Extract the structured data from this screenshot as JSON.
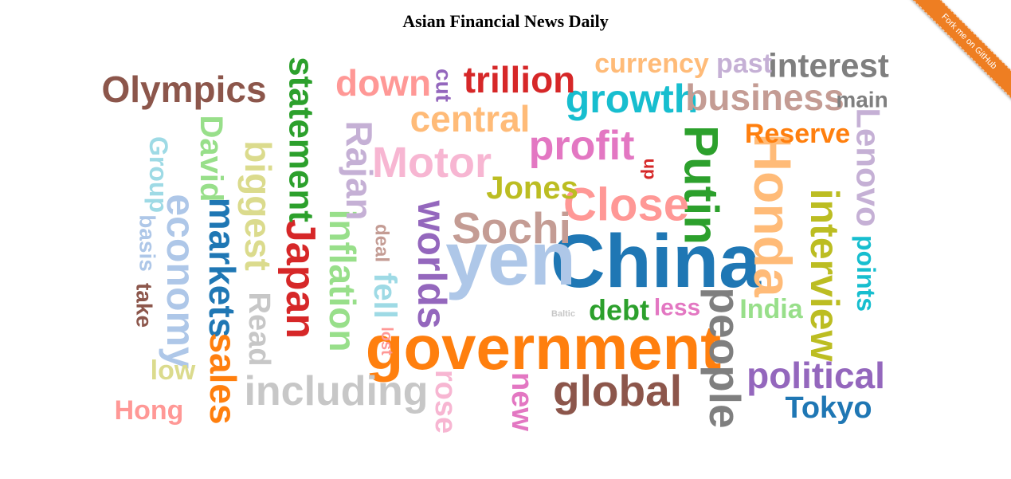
{
  "page": {
    "title": "Asian Financial News Daily"
  },
  "ribbon": {
    "label": "Fork me on GitHub"
  },
  "palette": {
    "orange": "#ff7f0e",
    "blue": "#1f77b4",
    "red": "#d62728",
    "green": "#2ca02c",
    "purple": "#9467bd",
    "brown": "#8c564b",
    "pink": "#e377c2",
    "gray": "#7f7f7f",
    "olive": "#bcbd22",
    "cyan": "#17becf",
    "light_blue": "#aec7e8",
    "light_orange": "#ffbb78",
    "light_green": "#98df8a",
    "light_red": "#ff9896",
    "light_purple": "#c5b0d5",
    "light_brown": "#c49c94",
    "light_pink": "#f7b6d2",
    "light_gray": "#c7c7c7",
    "light_olive": "#dbdb8d",
    "light_cyan": "#9edae5"
  },
  "words": [
    {
      "text": "China",
      "color": "#1f77b4",
      "size": 95,
      "rotate": 0
    },
    {
      "text": "yen",
      "color": "#aec7e8",
      "size": 95,
      "rotate": 0
    },
    {
      "text": "government",
      "color": "#ff7f0e",
      "size": 78,
      "rotate": 0
    },
    {
      "text": "Honda",
      "color": "#ffbb78",
      "size": 66,
      "rotate": 90
    },
    {
      "text": "Putin",
      "color": "#2ca02c",
      "size": 60,
      "rotate": 90
    },
    {
      "text": "Close",
      "color": "#ff9896",
      "size": 58,
      "rotate": 0
    },
    {
      "text": "global",
      "color": "#8c564b",
      "size": 55,
      "rotate": 0
    },
    {
      "text": "people",
      "color": "#7f7f7f",
      "size": 55,
      "rotate": 90
    },
    {
      "text": "Japan",
      "color": "#d62728",
      "size": 52,
      "rotate": 90
    },
    {
      "text": "including",
      "color": "#c7c7c7",
      "size": 52,
      "rotate": 0
    },
    {
      "text": "Sochi",
      "color": "#c49c94",
      "size": 55,
      "rotate": 0
    },
    {
      "text": "Motor",
      "color": "#f7b6d2",
      "size": 54,
      "rotate": 0
    },
    {
      "text": "profit",
      "color": "#e377c2",
      "size": 52,
      "rotate": 0
    },
    {
      "text": "growth",
      "color": "#17becf",
      "size": 50,
      "rotate": 0
    },
    {
      "text": "business",
      "color": "#c49c94",
      "size": 46,
      "rotate": 0
    },
    {
      "text": "interview",
      "color": "#bcbd22",
      "size": 50,
      "rotate": 90
    },
    {
      "text": "worlds",
      "color": "#9467bd",
      "size": 50,
      "rotate": 90
    },
    {
      "text": "economy",
      "color": "#aec7e8",
      "size": 50,
      "rotate": 90
    },
    {
      "text": "markets",
      "color": "#1f77b4",
      "size": 46,
      "rotate": 90
    },
    {
      "text": "Olympics",
      "color": "#8c564b",
      "size": 46,
      "rotate": 0
    },
    {
      "text": "statement",
      "color": "#2ca02c",
      "size": 44,
      "rotate": 90
    },
    {
      "text": "inflation",
      "color": "#98df8a",
      "size": 46,
      "rotate": 90
    },
    {
      "text": "biggest",
      "color": "#dbdb8d",
      "size": 46,
      "rotate": 90
    },
    {
      "text": "political",
      "color": "#9467bd",
      "size": 46,
      "rotate": 0
    },
    {
      "text": "trillion",
      "color": "#d62728",
      "size": 46,
      "rotate": 0
    },
    {
      "text": "central",
      "color": "#ffbb78",
      "size": 46,
      "rotate": 0
    },
    {
      "text": "down",
      "color": "#ff9896",
      "size": 46,
      "rotate": 0
    },
    {
      "text": "Rajan",
      "color": "#c5b0d5",
      "size": 46,
      "rotate": 90
    },
    {
      "text": "sales",
      "color": "#ff7f0e",
      "size": 46,
      "rotate": 90
    },
    {
      "text": "interest",
      "color": "#7f7f7f",
      "size": 42,
      "rotate": 0
    },
    {
      "text": "Lenovo",
      "color": "#c5b0d5",
      "size": 42,
      "rotate": 90
    },
    {
      "text": "David",
      "color": "#98df8a",
      "size": 40,
      "rotate": 90
    },
    {
      "text": "Jones",
      "color": "#bcbd22",
      "size": 40,
      "rotate": 0
    },
    {
      "text": "Tokyo",
      "color": "#1f77b4",
      "size": 38,
      "rotate": 0
    },
    {
      "text": "Reserve",
      "color": "#ff7f0e",
      "size": 34,
      "rotate": 0
    },
    {
      "text": "currency",
      "color": "#ffbb78",
      "size": 34,
      "rotate": 0
    },
    {
      "text": "past",
      "color": "#c5b0d5",
      "size": 34,
      "rotate": 0
    },
    {
      "text": "fell",
      "color": "#9edae5",
      "size": 40,
      "rotate": 90
    },
    {
      "text": "rose",
      "color": "#f7b6d2",
      "size": 38,
      "rotate": 90
    },
    {
      "text": "Read",
      "color": "#c7c7c7",
      "size": 38,
      "rotate": 90
    },
    {
      "text": "new",
      "color": "#e377c2",
      "size": 38,
      "rotate": 90
    },
    {
      "text": "debt",
      "color": "#2ca02c",
      "size": 36,
      "rotate": 0
    },
    {
      "text": "India",
      "color": "#98df8a",
      "size": 34,
      "rotate": 0
    },
    {
      "text": "points",
      "color": "#17becf",
      "size": 32,
      "rotate": 90
    },
    {
      "text": "Group",
      "color": "#9edae5",
      "size": 32,
      "rotate": 90
    },
    {
      "text": "Hong",
      "color": "#ff9896",
      "size": 34,
      "rotate": 0
    },
    {
      "text": "low",
      "color": "#dbdb8d",
      "size": 34,
      "rotate": 0
    },
    {
      "text": "less",
      "color": "#e377c2",
      "size": 30,
      "rotate": 0
    },
    {
      "text": "main",
      "color": "#7f7f7f",
      "size": 28,
      "rotate": 0
    },
    {
      "text": "cut",
      "color": "#9467bd",
      "size": 28,
      "rotate": 90
    },
    {
      "text": "basis",
      "color": "#aec7e8",
      "size": 28,
      "rotate": 90
    },
    {
      "text": "take",
      "color": "#8c564b",
      "size": 28,
      "rotate": 90
    },
    {
      "text": "deal",
      "color": "#c49c94",
      "size": 24,
      "rotate": 90
    },
    {
      "text": "up",
      "color": "#d62728",
      "size": 22,
      "rotate": 90
    },
    {
      "text": "lost",
      "color": "#ff9896",
      "size": 20,
      "rotate": 90
    },
    {
      "text": "Baltic",
      "color": "#c7c7c7",
      "size": 11,
      "rotate": 0
    }
  ]
}
